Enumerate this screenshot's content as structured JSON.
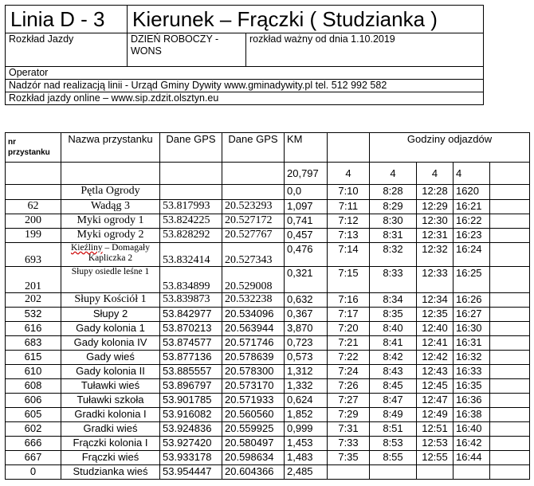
{
  "header": {
    "line": "Linia   D - 3",
    "direction": "Kierunek – Frączki ( Studzianka )",
    "schedule_label": "Rozkład Jazdy",
    "day_type": "DZIEŃ ROBOCZY - WONS",
    "valid_from": "rozkład ważny od dnia 1.10.2019",
    "operator": "Operator",
    "supervision": "Nadzór nad realizacją linii - Urząd Gminy Dywity www.gminadywity.pl   tel. 512 992 582",
    "online": "Rozkład jazdy online – www.sip.zdzit.olsztyn.eu"
  },
  "timetable": {
    "columns": {
      "nr": "nr przystanku",
      "name": "Nazwa przystanku",
      "gps1": "Dane GPS",
      "gps2": "Dane GPS",
      "km": "KM",
      "departures": "Godziny odjazdów"
    },
    "summary": {
      "km": "20,797",
      "counts": [
        "4",
        "4",
        "4",
        "4"
      ]
    },
    "rows": [
      {
        "nr": "",
        "name": "Pętla Ogrody",
        "lat": "",
        "lon": "",
        "km": "0,0",
        "times": [
          "7:10",
          "8:28",
          "12:28",
          "1620"
        ]
      },
      {
        "nr": "62",
        "name": "Wadąg 3",
        "lat": "53.817993",
        "lon": "20.523293",
        "km": "1,097",
        "times": [
          "7:11",
          "8:29",
          "12:29",
          "16:21"
        ]
      },
      {
        "nr": "200",
        "name": "Myki ogrody 1",
        "lat": "53.824225",
        "lon": "20.527172",
        "km": "0,741",
        "times": [
          "7:12",
          "8:30",
          "12:30",
          "16:22"
        ]
      },
      {
        "nr": "199",
        "name": "Myki ogrody 2",
        "lat": "53.828292",
        "lon": "20.527767",
        "km": "0,457",
        "times": [
          "7:13",
          "8:31",
          "12:31",
          "16:23"
        ]
      },
      {
        "nr": "693",
        "name_a": "Kieźliny",
        "name": " – Domagały Kapliczka 2",
        "lat": "53.832414",
        "lon": "20.527343",
        "km": "0,476",
        "times": [
          "7:14",
          "8:32",
          "12:32",
          "16:24"
        ]
      },
      {
        "nr": "201",
        "name": "Słupy osiedle leśne 1",
        "lat": "53.834899",
        "lon": "20.529008",
        "km": "0,321",
        "times": [
          "7:15",
          "8:33",
          "12:33",
          "16:25"
        ]
      },
      {
        "nr": "202",
        "name": "Słupy  Kościół 1",
        "lat": "53.839873",
        "lon": "20.532238",
        "km": "0,632",
        "times": [
          "7:16",
          "8:34",
          "12:34",
          "16:26"
        ]
      },
      {
        "nr": "532",
        "name": "Słupy 2",
        "lat": "53.842977",
        "lon": "20.534096",
        "km": "0,367",
        "times": [
          "7:17",
          "8:35",
          "12:35",
          "16:27"
        ]
      },
      {
        "nr": "616",
        "name": "Gady kolonia 1",
        "lat": "53.870213",
        "lon": "20.563944",
        "km": "3,870",
        "times": [
          "7:20",
          "8:40",
          "12:40",
          "16:30"
        ]
      },
      {
        "nr": "683",
        "name": "Gady kolonia IV",
        "lat": "53.874577",
        "lon": "20.571746",
        "km": "0,723",
        "times": [
          "7:21",
          "8:41",
          "12:41",
          "16:31"
        ]
      },
      {
        "nr": "615",
        "name": "Gady wieś",
        "lat": "53.877136",
        "lon": "20.578639",
        "km": "0,573",
        "times": [
          "7:22",
          "8:42",
          "12:42",
          "16:32"
        ]
      },
      {
        "nr": "610",
        "name": "Gady kolonia II",
        "lat": "53.885557",
        "lon": "20.578300",
        "km": "1,312",
        "times": [
          "7:24",
          "8:43",
          "12:43",
          "16:33"
        ]
      },
      {
        "nr": "608",
        "name": "Tuławki wieś",
        "lat": "53.896797",
        "lon": "20.573170",
        "km": "1,332",
        "times": [
          "7:26",
          "8:45",
          "12:45",
          "16:35"
        ]
      },
      {
        "nr": "606",
        "name": "Tuławki szkoła",
        "lat": "53.901785",
        "lon": "20.571933",
        "km": "0,624",
        "times": [
          "7:27",
          "8:47",
          "12:47",
          "16:36"
        ]
      },
      {
        "nr": "605",
        "name": "Gradki kolonia I",
        "lat": "53.916082",
        "lon": "20.560560",
        "km": "1,852",
        "times": [
          "7:29",
          "8:49",
          "12:49",
          "16:38"
        ]
      },
      {
        "nr": "602",
        "name": "Gradki wieś",
        "lat": "53.924836",
        "lon": "20.559925",
        "km": "0,999",
        "times": [
          "7:31",
          "8:51",
          "12:51",
          "16:40"
        ]
      },
      {
        "nr": "666",
        "name": "Frączki kolonia I",
        "lat": "53.927420",
        "lon": "20.580497",
        "km": "1,453",
        "times": [
          "7:33",
          "8:53",
          "12:53",
          "16:42"
        ]
      },
      {
        "nr": "667",
        "name": "Frączki wieś",
        "lat": "53.933178",
        "lon": "20.598634",
        "km": "1,483",
        "times": [
          "7:35",
          "8:55",
          "12:55",
          "16:44"
        ]
      },
      {
        "nr": "0",
        "name": "Studzianka wieś",
        "lat": "53.954447",
        "lon": "20.604366",
        "km": "2,485",
        "times": [
          "",
          "",
          "",
          ""
        ]
      }
    ]
  }
}
